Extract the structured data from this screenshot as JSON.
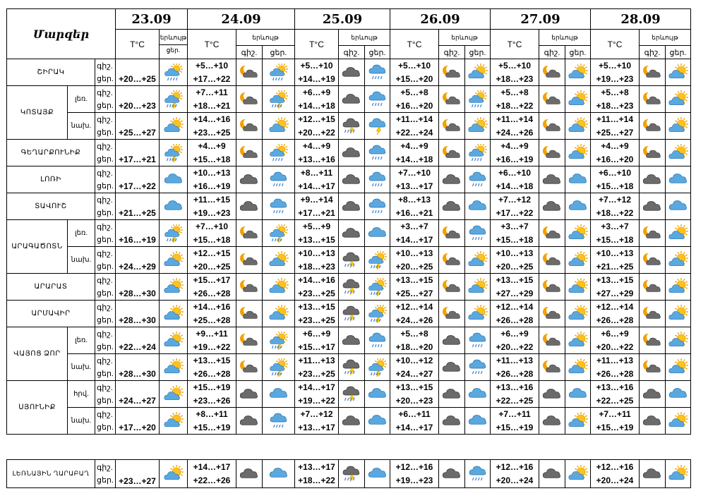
{
  "header": {
    "marzer": "Մարզեր",
    "dates": [
      "23.09",
      "24.09",
      "25.09",
      "26.09",
      "27.09",
      "28.09"
    ],
    "temp_label": "T°C",
    "events_label": "երևույթ",
    "day_label": "ցեր.",
    "night_label": "գիշ."
  },
  "rows": [
    {
      "region": "ՇԻՐԱԿ",
      "sub": "",
      "lines": [
        "գիշ.",
        "ցեր."
      ],
      "first": "+20…+25",
      "firstIcon": "sun-cloud-rain",
      "days": [
        {
          "n": "+5…+10",
          "d": "+17…+22",
          "i1": "moon-cloud",
          "i2": "sun-cloud-rain"
        },
        {
          "n": "+5…+10",
          "d": "+14…+19",
          "i1": "dark-cloud",
          "i2": "cloud-rain"
        },
        {
          "n": "+5…+10",
          "d": "+15…+20",
          "i1": "moon-cloud",
          "i2": "sun-cloud"
        },
        {
          "n": "+5…+10",
          "d": "+18…+23",
          "i1": "moon-cloud",
          "i2": "sun-cloud"
        },
        {
          "n": "+5…+10",
          "d": "+19…+23",
          "i1": "moon-cloud",
          "i2": "sun-cloud"
        }
      ]
    },
    {
      "region": "ԿՈՏԱՅՔ",
      "sub": "լեռ.",
      "lines": [
        "գիշ.",
        "ցեր."
      ],
      "first": "+20…+23",
      "firstIcon": "sun-cloud-storm",
      "days": [
        {
          "n": "+7…+11",
          "d": "+18…+21",
          "i1": "moon-cloud",
          "i2": "sun-cloud-storm"
        },
        {
          "n": "+6…+9",
          "d": "+14…+18",
          "i1": "dark-cloud",
          "i2": "cloud-rain"
        },
        {
          "n": "+5…+8",
          "d": "+16…+20",
          "i1": "moon-cloud",
          "i2": "sun-cloud-rain"
        },
        {
          "n": "+5…+8",
          "d": "+18…+22",
          "i1": "moon-cloud",
          "i2": "sun-cloud"
        },
        {
          "n": "+5…+8",
          "d": "+18…+23",
          "i1": "moon-cloud",
          "i2": "sun-cloud"
        }
      ]
    },
    {
      "region": "",
      "sub": "նախ.",
      "lines": [
        "գիշ.",
        "ցեր."
      ],
      "first": "+25…+27",
      "firstIcon": "sun-cloud",
      "days": [
        {
          "n": "+14…+16",
          "d": "+23…+25",
          "i1": "moon-cloud",
          "i2": "sun-cloud"
        },
        {
          "n": "+12…+15",
          "d": "+20…+22",
          "i1": "storm-cloud",
          "i2": "cloud-storm"
        },
        {
          "n": "+11…+14",
          "d": "+22…+24",
          "i1": "moon-cloud",
          "i2": "sun-cloud"
        },
        {
          "n": "+11…+14",
          "d": "+24…+26",
          "i1": "moon-cloud",
          "i2": "sun-cloud"
        },
        {
          "n": "+11…+14",
          "d": "+25…+27",
          "i1": "moon-cloud",
          "i2": "sun-cloud"
        }
      ]
    },
    {
      "region": "ԳԵՂԱՐՔՈՒՆԻՔ",
      "sub": "",
      "lines": [
        "գիշ.",
        "ցեր."
      ],
      "first": "+17…+21",
      "firstIcon": "sun-cloud-storm",
      "days": [
        {
          "n": "+4…+9",
          "d": "+15…+18",
          "i1": "moon-cloud",
          "i2": "sun-cloud-rain"
        },
        {
          "n": "+4…+9",
          "d": "+13…+16",
          "i1": "dark-cloud",
          "i2": "cloud-rain"
        },
        {
          "n": "+4…+9",
          "d": "+14…+18",
          "i1": "moon-cloud",
          "i2": "sun-cloud-rain"
        },
        {
          "n": "+4…+9",
          "d": "+16…+19",
          "i1": "moon-cloud",
          "i2": "sun-cloud"
        },
        {
          "n": "+4…+9",
          "d": "+16…+20",
          "i1": "moon-cloud",
          "i2": "sun-cloud"
        }
      ]
    },
    {
      "region": "ԼՈՌԻ",
      "sub": "",
      "lines": [
        "գիշ.",
        "ցեր."
      ],
      "first": "+17…+22",
      "firstIcon": "blue-cloud",
      "days": [
        {
          "n": "+10…+13",
          "d": "+16…+19",
          "i1": "dark-cloud",
          "i2": "cloud-rain"
        },
        {
          "n": "+8…+11",
          "d": "+14…+17",
          "i1": "dark-cloud",
          "i2": "cloud-rain"
        },
        {
          "n": "+7…+10",
          "d": "+13…+17",
          "i1": "dark-cloud",
          "i2": "cloud-rain"
        },
        {
          "n": "+6…+10",
          "d": "+14…+18",
          "i1": "dark-cloud",
          "i2": "blue-cloud"
        },
        {
          "n": "+6…+10",
          "d": "+15…+18",
          "i1": "dark-cloud",
          "i2": "blue-cloud"
        }
      ]
    },
    {
      "region": "ՏԱՎՈՒՇ",
      "sub": "",
      "lines": [
        "գիշ.",
        "ցեր."
      ],
      "first": "+21…+25",
      "firstIcon": "blue-cloud",
      "days": [
        {
          "n": "+11…+15",
          "d": "+19…+23",
          "i1": "dark-cloud",
          "i2": "cloud-rain"
        },
        {
          "n": "+9…+14",
          "d": "+17…+21",
          "i1": "dark-cloud",
          "i2": "cloud-rain"
        },
        {
          "n": "+8…+13",
          "d": "+16…+21",
          "i1": "dark-cloud",
          "i2": "blue-cloud"
        },
        {
          "n": "+7…+12",
          "d": "+17…+22",
          "i1": "dark-cloud",
          "i2": "blue-cloud"
        },
        {
          "n": "+7…+12",
          "d": "+18…+22",
          "i1": "dark-cloud",
          "i2": "blue-cloud"
        }
      ]
    },
    {
      "region": "ԱՐԱԳԱԾՈՏՆ",
      "sub": "լեռ.",
      "lines": [
        "գիշ.",
        "ցեր."
      ],
      "first": "+16…+19",
      "firstIcon": "sun-cloud-storm",
      "days": [
        {
          "n": "+7…+10",
          "d": "+15…+18",
          "i1": "moon-cloud",
          "i2": "sun-cloud-storm"
        },
        {
          "n": "+5…+9",
          "d": "+13…+15",
          "i1": "dark-cloud",
          "i2": "blue-cloud"
        },
        {
          "n": "+3…+7",
          "d": "+14…+17",
          "i1": "moon-cloud",
          "i2": "cloud-rain"
        },
        {
          "n": "+3…+7",
          "d": "+15…+18",
          "i1": "moon-cloud",
          "i2": "sun-cloud"
        },
        {
          "n": "+3…+7",
          "d": "+15…+18",
          "i1": "moon-cloud",
          "i2": "sun-cloud"
        }
      ]
    },
    {
      "region": "",
      "sub": "նախ.",
      "lines": [
        "գիշ.",
        "ցեր."
      ],
      "first": "+24…+29",
      "firstIcon": "sun-cloud",
      "days": [
        {
          "n": "+12…+15",
          "d": "+20…+25",
          "i1": "moon-cloud",
          "i2": "sun-cloud"
        },
        {
          "n": "+10…+13",
          "d": "+18…+23",
          "i1": "storm-cloud",
          "i2": "sun-cloud-storm"
        },
        {
          "n": "+10…+13",
          "d": "+20…+25",
          "i1": "moon-cloud",
          "i2": "sun-cloud"
        },
        {
          "n": "+10…+13",
          "d": "+20…+25",
          "i1": "moon-cloud",
          "i2": "sun-cloud"
        },
        {
          "n": "+10…+13",
          "d": "+21…+25",
          "i1": "moon-cloud",
          "i2": "sun-cloud"
        }
      ]
    },
    {
      "region": "ԱՐԱՐԱՏ",
      "sub": "",
      "lines": [
        "գիշ.",
        "ցեր."
      ],
      "first": "+28…+30",
      "firstIcon": "sun-cloud",
      "days": [
        {
          "n": "+15…+17",
          "d": "+26…+28",
          "i1": "moon-cloud",
          "i2": "sun-cloud"
        },
        {
          "n": "+14…+16",
          "d": "+23…+25",
          "i1": "storm-cloud",
          "i2": "sun-cloud-storm"
        },
        {
          "n": "+13…+15",
          "d": "+25…+27",
          "i1": "moon-cloud",
          "i2": "sun-cloud"
        },
        {
          "n": "+13…+15",
          "d": "+27…+29",
          "i1": "moon-cloud",
          "i2": "sun-cloud"
        },
        {
          "n": "+13…+15",
          "d": "+27…+29",
          "i1": "moon-cloud",
          "i2": "sun-cloud"
        }
      ]
    },
    {
      "region": "ԱՐՄԱՎԻՐ",
      "sub": "",
      "lines": [
        "գիշ.",
        "ցեր."
      ],
      "first": "+28…+30",
      "firstIcon": "sun-cloud",
      "days": [
        {
          "n": "+14…+16",
          "d": "+25…+28",
          "i1": "moon-cloud",
          "i2": "sun-cloud"
        },
        {
          "n": "+13…+15",
          "d": "+23…+25",
          "i1": "storm-cloud",
          "i2": "sun-cloud-storm"
        },
        {
          "n": "+12…+14",
          "d": "+24…+26",
          "i1": "moon-cloud",
          "i2": "sun-cloud"
        },
        {
          "n": "+12…+14",
          "d": "+26…+28",
          "i1": "moon-cloud",
          "i2": "sun-cloud"
        },
        {
          "n": "+12…+14",
          "d": "+26…+28",
          "i1": "moon-cloud",
          "i2": "sun-cloud"
        }
      ]
    },
    {
      "region": "ՎԱՅՈՑ ՁՈՐ",
      "sub": "լեռ.",
      "lines": [
        "գիշ.",
        "ցեր."
      ],
      "first": "+22…+24",
      "firstIcon": "sun-cloud",
      "days": [
        {
          "n": "+9…+11",
          "d": "+19…+22",
          "i1": "moon-cloud",
          "i2": "sun-cloud-storm"
        },
        {
          "n": "+6…+9",
          "d": "+15…+17",
          "i1": "dark-cloud",
          "i2": "cloud-rain"
        },
        {
          "n": "+5…+8",
          "d": "+18…+20",
          "i1": "dark-cloud",
          "i2": "cloud-rain"
        },
        {
          "n": "+6…+9",
          "d": "+20…+22",
          "i1": "moon-cloud",
          "i2": "sun-cloud"
        },
        {
          "n": "+6…+9",
          "d": "+20…+22",
          "i1": "moon-cloud",
          "i2": "sun-cloud"
        }
      ]
    },
    {
      "region": "",
      "sub": "նախ.",
      "lines": [
        "գիշ.",
        "ցեր."
      ],
      "first": "+28…+30",
      "firstIcon": "sun-cloud",
      "days": [
        {
          "n": "+13…+15",
          "d": "+26…+28",
          "i1": "moon-cloud",
          "i2": "sun-cloud-storm"
        },
        {
          "n": "+11…+13",
          "d": "+23…+25",
          "i1": "storm-cloud",
          "i2": "sun-cloud-storm"
        },
        {
          "n": "+10…+12",
          "d": "+24…+27",
          "i1": "dark-cloud",
          "i2": "cloud-rain"
        },
        {
          "n": "+11…+13",
          "d": "+26…+28",
          "i1": "moon-cloud",
          "i2": "sun-cloud"
        },
        {
          "n": "+11…+13",
          "d": "+26…+28",
          "i1": "moon-cloud",
          "i2": "sun-cloud"
        }
      ]
    },
    {
      "region": "ՍՅՈՒՆԻՔ",
      "sub": "հրվ.",
      "lines": [
        "գիշ.",
        "ցեր."
      ],
      "first": "+24…+27",
      "firstIcon": "sun-cloud",
      "days": [
        {
          "n": "+15…+19",
          "d": "+23…+26",
          "i1": "dark-cloud",
          "i2": "blue-cloud"
        },
        {
          "n": "+14…+17",
          "d": "+19…+22",
          "i1": "storm-cloud",
          "i2": "blue-cloud"
        },
        {
          "n": "+13…+15",
          "d": "+20…+23",
          "i1": "dark-cloud",
          "i2": "blue-cloud"
        },
        {
          "n": "+13…+16",
          "d": "+22…+25",
          "i1": "dark-cloud",
          "i2": "blue-cloud"
        },
        {
          "n": "+13…+16",
          "d": "+22…+25",
          "i1": "dark-cloud",
          "i2": "blue-cloud"
        }
      ]
    },
    {
      "region": "",
      "sub": "նախ.",
      "lines": [
        "գիշ.",
        "ցեր."
      ],
      "first": "+17…+20",
      "firstIcon": "sun-cloud",
      "days": [
        {
          "n": "+8…+11",
          "d": "+15…+19",
          "i1": "dark-cloud",
          "i2": "cloud-rain"
        },
        {
          "n": "+7…+12",
          "d": "+13…+17",
          "i1": "dark-cloud",
          "i2": "blue-cloud"
        },
        {
          "n": "+6…+11",
          "d": "+14…+17",
          "i1": "dark-cloud",
          "i2": "blue-cloud"
        },
        {
          "n": "+7…+11",
          "d": "+15…+19",
          "i1": "dark-cloud",
          "i2": "sun-cloud"
        },
        {
          "n": "+7…+11",
          "d": "+15…+19",
          "i1": "dark-cloud",
          "i2": "sun-cloud"
        }
      ]
    }
  ],
  "karabakh": {
    "region": "ԼԵՌՆԱՅԻՆ ՂԱՐԱԲԱՂ",
    "lines": [
      "գիշ.",
      "ցեր."
    ],
    "first": "+23…+27",
    "firstIcon": "sun-cloud",
    "days": [
      {
        "n": "+14…+17",
        "d": "+22…+26",
        "i1": "dark-cloud",
        "i2": "blue-cloud"
      },
      {
        "n": "+13…+17",
        "d": "+18…+22",
        "i1": "storm-cloud",
        "i2": "blue-cloud"
      },
      {
        "n": "+12…+16",
        "d": "+19…+23",
        "i1": "dark-cloud",
        "i2": "cloud-rain"
      },
      {
        "n": "+12…+16",
        "d": "+20…+24",
        "i1": "dark-cloud",
        "i2": "sun-cloud"
      },
      {
        "n": "+12…+16",
        "d": "+20…+24",
        "i1": "dark-cloud",
        "i2": "sun-cloud"
      }
    ]
  }
}
